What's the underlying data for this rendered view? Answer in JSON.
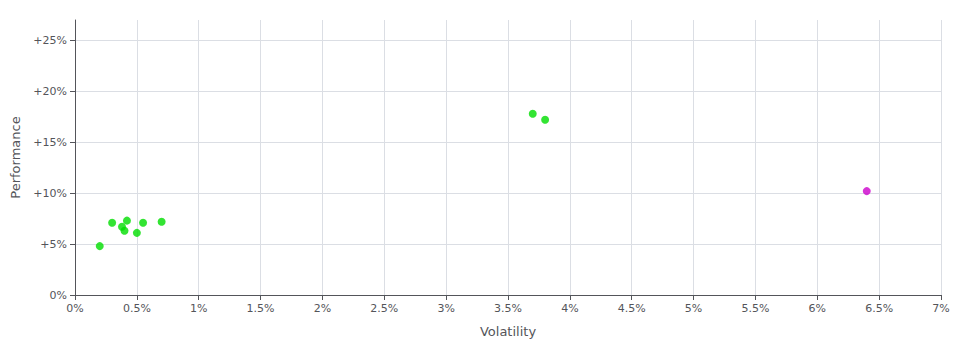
{
  "chart_data": {
    "type": "scatter",
    "xlabel": "Volatility",
    "ylabel": "Performance",
    "xlim": [
      0,
      0.07
    ],
    "ylim": [
      0,
      0.27
    ],
    "xticks": [
      {
        "value": 0.0,
        "label": "0%"
      },
      {
        "value": 0.005,
        "label": "0.5%"
      },
      {
        "value": 0.01,
        "label": "1%"
      },
      {
        "value": 0.015,
        "label": "1.5%"
      },
      {
        "value": 0.02,
        "label": "2%"
      },
      {
        "value": 0.025,
        "label": "2.5%"
      },
      {
        "value": 0.03,
        "label": "3%"
      },
      {
        "value": 0.035,
        "label": "3.5%"
      },
      {
        "value": 0.04,
        "label": "4%"
      },
      {
        "value": 0.045,
        "label": "4.5%"
      },
      {
        "value": 0.05,
        "label": "5%"
      },
      {
        "value": 0.055,
        "label": "5.5%"
      },
      {
        "value": 0.06,
        "label": "6%"
      },
      {
        "value": 0.065,
        "label": "6.5%"
      },
      {
        "value": 0.07,
        "label": "7%"
      }
    ],
    "yticks": [
      {
        "value": 0.0,
        "label": "0%"
      },
      {
        "value": 0.05,
        "label": "+5%"
      },
      {
        "value": 0.1,
        "label": "+10%"
      },
      {
        "value": 0.15,
        "label": "+15%"
      },
      {
        "value": 0.2,
        "label": "+20%"
      },
      {
        "value": 0.25,
        "label": "+25%"
      }
    ],
    "grid": true,
    "series": [
      {
        "color": "#00dd00",
        "x": [
          0.002,
          0.003,
          0.0038,
          0.004,
          0.0042,
          0.005,
          0.0055,
          0.007,
          0.037,
          0.038
        ],
        "values": [
          0.048,
          0.071,
          0.067,
          0.063,
          0.073,
          0.061,
          0.071,
          0.072,
          0.178,
          0.172
        ]
      },
      {
        "color": "#cc00cc",
        "x": [
          0.064
        ],
        "values": [
          0.102
        ]
      }
    ]
  }
}
